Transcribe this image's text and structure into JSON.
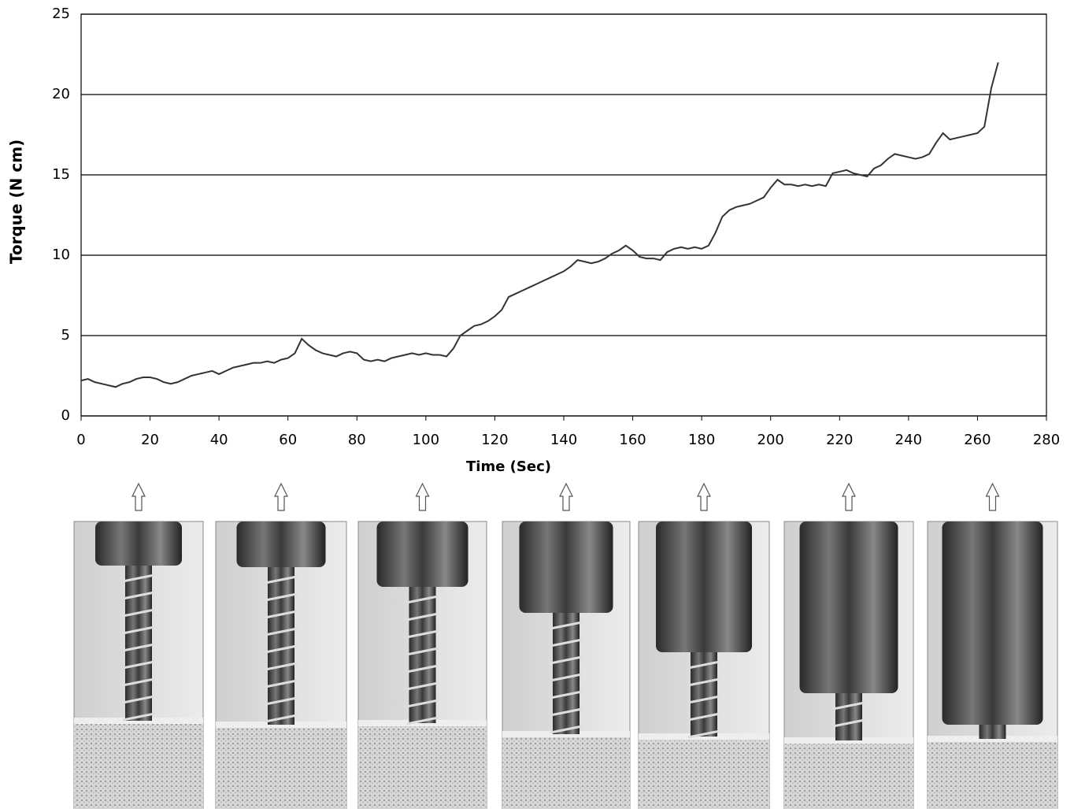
{
  "chart_data": {
    "type": "line",
    "x_label": "Time (Sec)",
    "y_label": "Torque (N cm)",
    "x": [
      0,
      2,
      4,
      6,
      8,
      10,
      12,
      14,
      16,
      18,
      20,
      22,
      24,
      26,
      28,
      30,
      32,
      34,
      36,
      38,
      40,
      42,
      44,
      46,
      48,
      50,
      52,
      54,
      56,
      58,
      60,
      62,
      64,
      66,
      68,
      70,
      72,
      74,
      76,
      78,
      80,
      82,
      84,
      86,
      88,
      90,
      92,
      94,
      96,
      98,
      100,
      102,
      104,
      106,
      108,
      110,
      112,
      114,
      116,
      118,
      120,
      122,
      124,
      126,
      128,
      130,
      132,
      134,
      136,
      138,
      140,
      142,
      144,
      146,
      148,
      150,
      152,
      154,
      156,
      158,
      160,
      162,
      164,
      166,
      168,
      170,
      172,
      174,
      176,
      178,
      180,
      182,
      184,
      186,
      188,
      190,
      192,
      194,
      196,
      198,
      200,
      202,
      204,
      206,
      208,
      210,
      212,
      214,
      216,
      218,
      220,
      222,
      224,
      226,
      228,
      230,
      232,
      234,
      236,
      238,
      240,
      242,
      244,
      246,
      248,
      250,
      252,
      254,
      256,
      258,
      260,
      262,
      264,
      266
    ],
    "values": [
      2.2,
      2.3,
      2.1,
      2.0,
      1.9,
      1.8,
      2.0,
      2.1,
      2.3,
      2.4,
      2.4,
      2.3,
      2.1,
      2.0,
      2.1,
      2.3,
      2.5,
      2.6,
      2.7,
      2.8,
      2.6,
      2.8,
      3.0,
      3.1,
      3.2,
      3.3,
      3.3,
      3.4,
      3.3,
      3.5,
      3.6,
      3.9,
      4.8,
      4.4,
      4.1,
      3.9,
      3.8,
      3.7,
      3.9,
      4.0,
      3.9,
      3.5,
      3.4,
      3.5,
      3.4,
      3.6,
      3.7,
      3.8,
      3.9,
      3.8,
      3.9,
      3.8,
      3.8,
      3.7,
      4.2,
      5.0,
      5.3,
      5.6,
      5.7,
      5.9,
      6.2,
      6.6,
      7.4,
      7.6,
      7.8,
      8.0,
      8.2,
      8.4,
      8.6,
      8.8,
      9.0,
      9.3,
      9.7,
      9.6,
      9.5,
      9.6,
      9.8,
      10.1,
      10.3,
      10.6,
      10.3,
      9.9,
      9.8,
      9.8,
      9.7,
      10.2,
      10.4,
      10.5,
      10.4,
      10.5,
      10.4,
      10.6,
      11.4,
      12.4,
      12.8,
      13.0,
      13.1,
      13.2,
      13.4,
      13.6,
      14.2,
      14.7,
      14.4,
      14.4,
      14.3,
      14.4,
      14.3,
      14.4,
      14.3,
      15.1,
      15.2,
      15.3,
      15.1,
      15.0,
      14.9,
      15.4,
      15.6,
      16.0,
      16.3,
      16.2,
      16.1,
      16.0,
      16.1,
      16.3,
      17.0,
      17.6,
      17.2,
      17.3,
      17.4,
      17.5,
      17.6,
      18.0,
      20.4,
      22.0
    ],
    "color": "#333333",
    "xlim": [
      0,
      280
    ],
    "xticks": [
      0,
      20,
      40,
      60,
      80,
      100,
      120,
      140,
      160,
      180,
      200,
      220,
      240,
      260,
      280
    ],
    "ylim": [
      0,
      25
    ],
    "yticks": [
      0,
      5,
      10,
      15,
      20,
      25
    ],
    "grid": true
  }
}
